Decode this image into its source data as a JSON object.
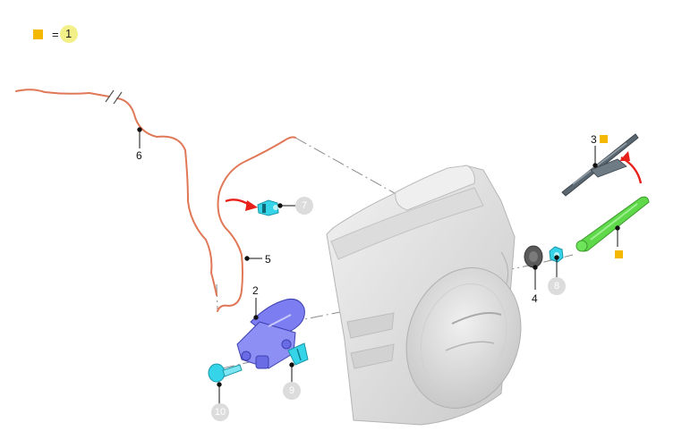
{
  "legend": {
    "marker_color": "#f5b800",
    "equals": "=",
    "value": "1"
  },
  "callouts": {
    "c2": "2",
    "c3": "3",
    "c4": "4",
    "c5": "5",
    "c6": "6",
    "c7": "7",
    "c8": "8",
    "c9": "9",
    "c10": "10"
  },
  "colors": {
    "hose": "#e07858",
    "motor": "#7b7df0",
    "nozzle": "#35d4e8",
    "arm": "#5fd84a",
    "arrow": "#e8201a",
    "marker": "#f5b800",
    "panel": "#e2e2e2"
  }
}
